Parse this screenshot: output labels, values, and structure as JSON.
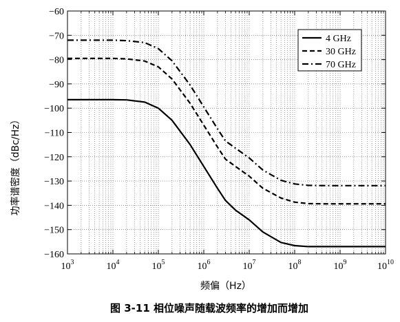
{
  "chart_data": {
    "type": "line",
    "title": "",
    "caption": "图 3-11   相位噪声随载波频率的增加而增加",
    "xlabel": "频偏（Hz）",
    "ylabel": "功率谱密度（dBc/Hz）",
    "xscale": "log",
    "xlim": [
      1000,
      10000000000
    ],
    "ylim": [
      -160,
      -60
    ],
    "grid": true,
    "legend_position": "top-right",
    "x_ticks": [
      {
        "base": "10",
        "exp": "3"
      },
      {
        "base": "10",
        "exp": "4"
      },
      {
        "base": "10",
        "exp": "5"
      },
      {
        "base": "10",
        "exp": "6"
      },
      {
        "base": "10",
        "exp": "7"
      },
      {
        "base": "10",
        "exp": "8"
      },
      {
        "base": "10",
        "exp": "9"
      },
      {
        "base": "10",
        "exp": "10"
      }
    ],
    "y_ticks": [
      "−60",
      "−70",
      "−80",
      "−90",
      "−100",
      "−110",
      "−120",
      "−130",
      "−140",
      "−150",
      "−160"
    ],
    "series": [
      {
        "name": "4 GHz",
        "style": "solid",
        "x": [
          1000,
          3000,
          10000,
          20000,
          50000,
          100000,
          200000,
          500000,
          1000000,
          2000000,
          3000000,
          5000000,
          10000000,
          20000000,
          50000000,
          100000000,
          200000000,
          500000000,
          1000000000,
          10000000000
        ],
        "y": [
          -96.5,
          -96.5,
          -96.5,
          -96.6,
          -97.5,
          -100,
          -105,
          -115,
          -124,
          -133,
          -138,
          -142,
          -146,
          -151,
          -155.3,
          -156.6,
          -157,
          -157,
          -157,
          -157
        ]
      },
      {
        "name": "30 GHz",
        "style": "dashed",
        "x": [
          1000,
          3000,
          10000,
          20000,
          50000,
          100000,
          200000,
          500000,
          1000000,
          2000000,
          3000000,
          5000000,
          10000000,
          20000000,
          50000000,
          100000000,
          200000000,
          500000000,
          1000000000,
          10000000000
        ],
        "y": [
          -79.5,
          -79.5,
          -79.5,
          -79.7,
          -80.6,
          -83,
          -88,
          -98,
          -107,
          -116,
          -121,
          -124,
          -128,
          -133,
          -137,
          -138.7,
          -139.3,
          -139.4,
          -139.4,
          -139.4
        ]
      },
      {
        "name": "70 GHz",
        "style": "dashdot",
        "x": [
          1000,
          3000,
          10000,
          20000,
          50000,
          100000,
          200000,
          500000,
          1000000,
          2000000,
          3000000,
          5000000,
          10000000,
          20000000,
          50000000,
          100000000,
          200000000,
          500000000,
          1000000000,
          10000000000
        ],
        "y": [
          -72,
          -72,
          -72,
          -72.2,
          -73,
          -75.5,
          -80.5,
          -90.5,
          -99.5,
          -108.5,
          -113.5,
          -116.5,
          -120.5,
          -125.5,
          -129.7,
          -131.2,
          -131.8,
          -131.9,
          -131.9,
          -131.9
        ]
      }
    ]
  }
}
